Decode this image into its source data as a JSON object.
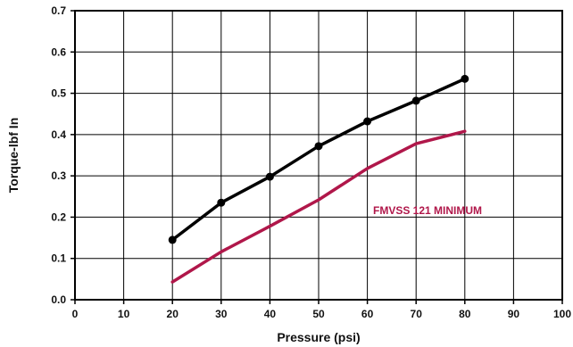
{
  "chart_data": {
    "type": "line",
    "xlabel": "Pressure (psi)",
    "ylabel": "Torque-lbf In",
    "xlim": [
      0,
      100
    ],
    "ylim": [
      0.0,
      0.7
    ],
    "x_ticks": [
      "0",
      "10",
      "20",
      "30",
      "40",
      "50",
      "60",
      "70",
      "80",
      "90",
      "100"
    ],
    "y_ticks": [
      "0.0",
      "0.1",
      "0.2",
      "0.3",
      "0.4",
      "0.5",
      "0.6",
      "0.7"
    ],
    "grid": true,
    "series": [
      {
        "color": "#000000",
        "markers": true,
        "x": [
          20,
          30,
          40,
          50,
          60,
          70,
          80
        ],
        "y": [
          0.145,
          0.235,
          0.298,
          0.372,
          0.432,
          0.482,
          0.535
        ]
      },
      {
        "name": "FMVSS 121 MINIMUM",
        "color": "#b0174a",
        "markers": false,
        "x": [
          20,
          30,
          40,
          50,
          60,
          70,
          80
        ],
        "y": [
          0.043,
          0.116,
          0.178,
          0.242,
          0.318,
          0.378,
          0.408
        ]
      }
    ]
  }
}
